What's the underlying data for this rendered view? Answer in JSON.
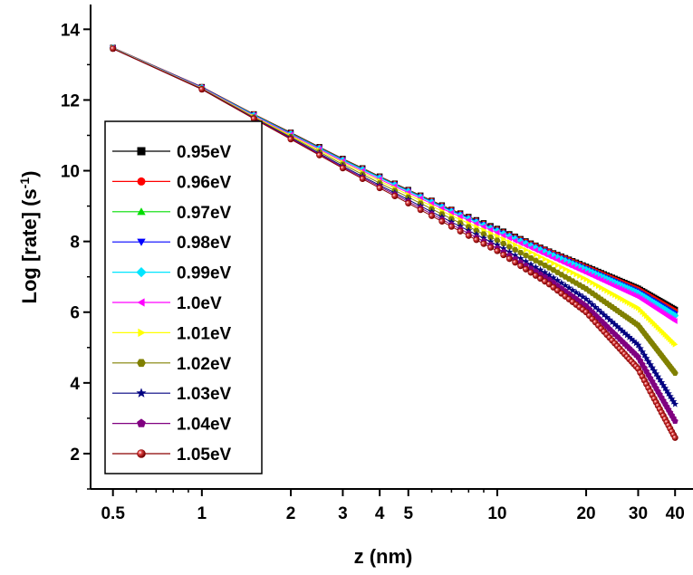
{
  "chart_data": {
    "type": "line",
    "title": "",
    "xlabel": "z (nm)",
    "ylabel_main": "Log [rate] (s",
    "ylabel_sup": "-1",
    "ylabel_end": ")",
    "xscale": "log",
    "xlim": [
      0.42,
      46
    ],
    "ylim": [
      1.0,
      14.7
    ],
    "x_ticks": [
      0.5,
      1,
      2,
      3,
      4,
      5,
      10,
      20,
      30,
      40
    ],
    "x_tick_labels": [
      "0.5",
      "1",
      "2",
      "3",
      "4",
      "5",
      "10",
      "20",
      "30",
      "40"
    ],
    "y_ticks": [
      2,
      4,
      6,
      8,
      10,
      12,
      14
    ],
    "y_tick_labels": [
      "2",
      "4",
      "6",
      "8",
      "10",
      "12",
      "14"
    ],
    "grid": false,
    "legend_position": "left",
    "x": [
      0.5,
      1,
      1.5,
      2,
      3,
      4,
      5,
      7,
      10,
      15,
      20,
      30,
      40
    ],
    "series": [
      {
        "name": "0.95eV",
        "color": "#000000",
        "marker": "square",
        "values": [
          13.48,
          12.37,
          11.6,
          11.08,
          10.34,
          9.84,
          9.46,
          8.9,
          8.36,
          7.72,
          7.29,
          6.67,
          6.07
        ]
      },
      {
        "name": "0.96eV",
        "color": "#ff0000",
        "marker": "circle",
        "values": [
          13.48,
          12.37,
          11.6,
          11.07,
          10.33,
          9.83,
          9.45,
          8.89,
          8.34,
          7.71,
          7.27,
          6.64,
          6.03
        ]
      },
      {
        "name": "0.97eV",
        "color": "#00dd00",
        "marker": "triangle-up",
        "values": [
          13.47,
          12.36,
          11.59,
          11.06,
          10.32,
          9.82,
          9.44,
          8.88,
          8.33,
          7.69,
          7.25,
          6.61,
          5.99
        ]
      },
      {
        "name": "0.98eV",
        "color": "#0000ff",
        "marker": "triangle-down",
        "values": [
          13.47,
          12.36,
          11.58,
          11.05,
          10.31,
          9.81,
          9.43,
          8.87,
          8.32,
          7.68,
          7.23,
          6.58,
          5.95
        ]
      },
      {
        "name": "0.99eV",
        "color": "#00e5ff",
        "marker": "diamond",
        "values": [
          13.47,
          12.35,
          11.57,
          11.04,
          10.3,
          9.8,
          9.42,
          8.85,
          8.3,
          7.65,
          7.2,
          6.54,
          5.9
        ]
      },
      {
        "name": "1.0eV",
        "color": "#ff00ff",
        "marker": "triangle-left",
        "values": [
          13.46,
          12.34,
          11.55,
          11.02,
          10.27,
          9.76,
          9.38,
          8.81,
          8.25,
          7.58,
          7.11,
          6.43,
          5.75
        ]
      },
      {
        "name": "1.01eV",
        "color": "#ffff00",
        "marker": "triangle-right",
        "values": [
          13.46,
          12.33,
          11.53,
          10.99,
          10.23,
          9.71,
          9.32,
          8.73,
          8.15,
          7.44,
          6.93,
          6.12,
          5.09
        ]
      },
      {
        "name": "1.02eV",
        "color": "#808000",
        "marker": "hexagon",
        "values": [
          13.45,
          12.32,
          11.51,
          10.96,
          10.18,
          9.65,
          9.25,
          8.64,
          8.03,
          7.26,
          6.66,
          5.63,
          4.28
        ]
      },
      {
        "name": "1.03eV",
        "color": "#000080",
        "marker": "star",
        "values": [
          13.45,
          12.31,
          11.49,
          10.93,
          10.13,
          9.59,
          9.18,
          8.55,
          7.9,
          7.05,
          6.37,
          5.07,
          3.4
        ]
      },
      {
        "name": "1.04eV",
        "color": "#800080",
        "marker": "pentagon",
        "values": [
          13.45,
          12.3,
          11.48,
          10.91,
          10.1,
          9.55,
          9.13,
          8.48,
          7.81,
          6.92,
          6.17,
          4.73,
          2.92
        ]
      },
      {
        "name": "1.05eV",
        "color": "#8b0000",
        "marker": "sphere",
        "values": [
          13.45,
          12.3,
          11.47,
          10.89,
          10.07,
          9.51,
          9.08,
          8.42,
          7.73,
          6.79,
          6.0,
          4.4,
          2.45
        ]
      }
    ]
  }
}
